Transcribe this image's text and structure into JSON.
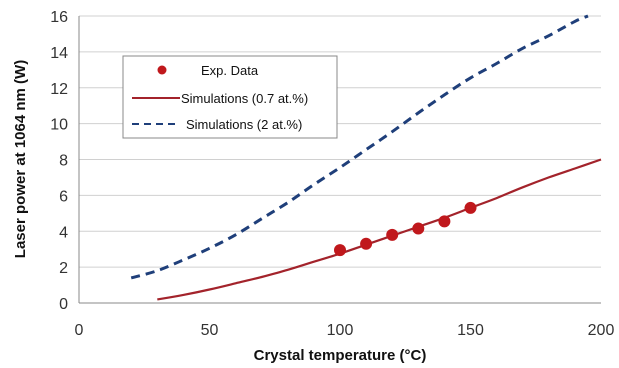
{
  "chart_data": {
    "type": "line",
    "title": "",
    "xlabel": "Crystal temperature (°C)",
    "ylabel": "Laser power at 1064 nm (W)",
    "xlim": [
      0,
      200
    ],
    "ylim": [
      0,
      16
    ],
    "xticks": [
      0,
      50,
      100,
      150,
      200
    ],
    "yticks": [
      0,
      2,
      4,
      6,
      8,
      10,
      12,
      14,
      16
    ],
    "grid": "horizontal",
    "legend_position": "upper-left",
    "series": [
      {
        "name": "Exp. Data",
        "kind": "scatter",
        "color": "#c0181c",
        "x": [
          100,
          110,
          120,
          130,
          140,
          150
        ],
        "y": [
          2.95,
          3.3,
          3.8,
          4.15,
          4.55,
          5.3
        ]
      },
      {
        "name": "Simulations (0.7 at.%)",
        "kind": "line",
        "style": "solid",
        "color": "#a3232b",
        "x": [
          30,
          40,
          50,
          60,
          70,
          80,
          90,
          100,
          110,
          120,
          130,
          140,
          150,
          160,
          170,
          180,
          190,
          200
        ],
        "y": [
          0.2,
          0.45,
          0.75,
          1.1,
          1.45,
          1.85,
          2.3,
          2.75,
          3.25,
          3.75,
          4.25,
          4.75,
          5.3,
          5.85,
          6.45,
          7.0,
          7.5,
          8.0
        ]
      },
      {
        "name": "Simulations (2 at.%)",
        "kind": "line",
        "style": "dashed",
        "color": "#1f3f7a",
        "x": [
          20,
          30,
          40,
          50,
          60,
          70,
          80,
          90,
          100,
          110,
          120,
          130,
          140,
          150,
          160,
          170,
          180,
          190,
          195
        ],
        "y": [
          1.4,
          1.8,
          2.4,
          3.05,
          3.8,
          4.7,
          5.6,
          6.6,
          7.55,
          8.55,
          9.55,
          10.6,
          11.6,
          12.55,
          13.35,
          14.2,
          14.9,
          15.7,
          16.0
        ]
      }
    ]
  }
}
